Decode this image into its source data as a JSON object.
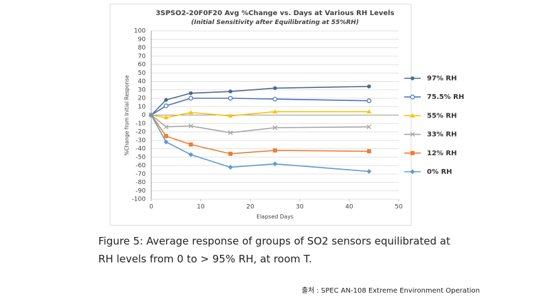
{
  "chart_data": {
    "type": "line",
    "title": "3SPSO2-20F0F20 Avg %Change vs. Days at Various RH Levels",
    "subtitle": "(Initial Sensitivity after Equilibrating at 55%RH)",
    "x_label": "Elapsed Days",
    "y_label": "%Change from Initial Response",
    "x": [
      0,
      3,
      8,
      16,
      25,
      44
    ],
    "xlim": [
      0,
      50
    ],
    "xticks": [
      0,
      10,
      20,
      30,
      40,
      50
    ],
    "ylim": [
      -100,
      100
    ],
    "yticks": [
      -100,
      -90,
      -80,
      -70,
      -60,
      -50,
      -40,
      -30,
      -20,
      -10,
      0,
      10,
      20,
      30,
      40,
      50,
      60,
      70,
      80,
      90,
      100
    ],
    "grid": true,
    "legend": "right",
    "series": [
      {
        "name": "97% RH",
        "color": "#4a6d8c",
        "marker": "circle",
        "values": [
          0,
          18,
          26,
          28,
          32,
          34
        ]
      },
      {
        "name": "75.5% RH",
        "color": "#4472c4",
        "marker": "open-circle",
        "values": [
          0,
          11,
          20,
          20,
          19,
          17
        ]
      },
      {
        "name": "55% RH",
        "color": "#ffc000",
        "marker": "triangle",
        "values": [
          0,
          -3,
          3,
          -1,
          4,
          4
        ]
      },
      {
        "name": "33% RH",
        "color": "#a5a5a5",
        "marker": "x",
        "values": [
          0,
          -14,
          -13,
          -21,
          -15,
          -14
        ]
      },
      {
        "name": "12% RH",
        "color": "#ed7d31",
        "marker": "square",
        "values": [
          0,
          -25,
          -35,
          -46,
          -42,
          -43
        ]
      },
      {
        "name": "0% RH",
        "color": "#5b9bd5",
        "marker": "diamond",
        "values": [
          0,
          -32,
          -47,
          -62,
          -58,
          -67
        ]
      }
    ]
  },
  "caption": [
    "Figure 5: Average response of groups of SO2 sensors equilibrated at",
    "RH levels from 0 to > 95% RH, at room T."
  ],
  "source": "출처 : SPEC AN-108 Extreme Environment Operation"
}
